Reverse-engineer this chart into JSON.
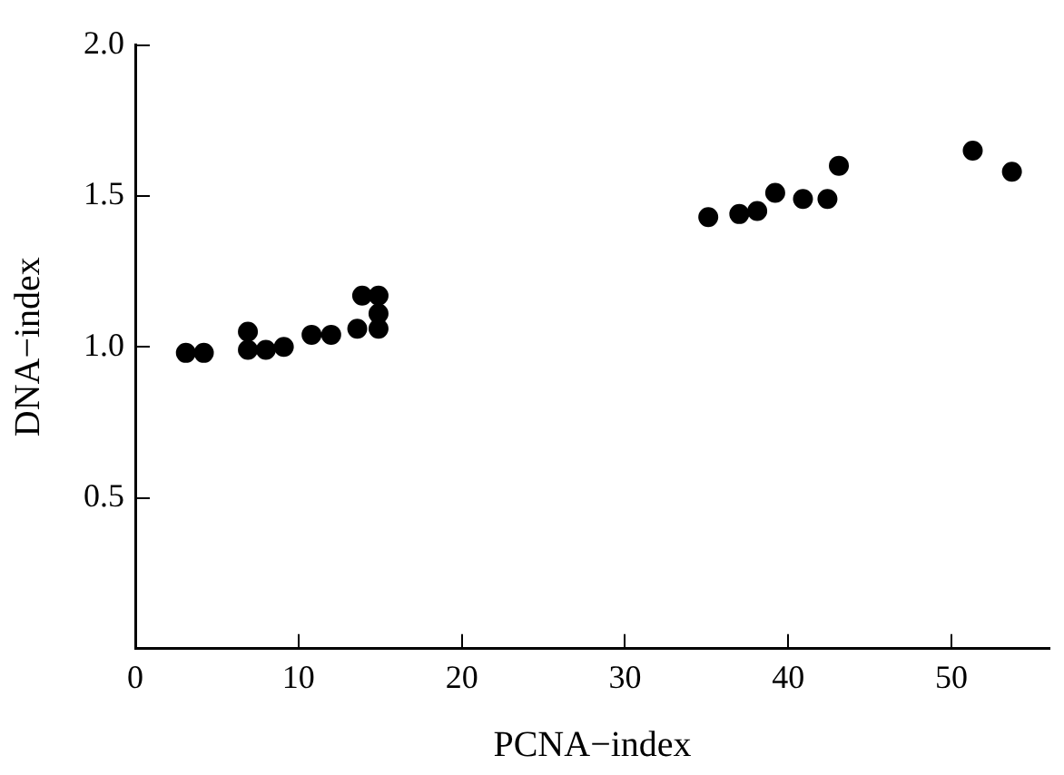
{
  "chart_data": {
    "type": "scatter",
    "xlabel": "PCNA−index",
    "ylabel": "DNA−index",
    "x": [
      3.1,
      4.2,
      6.9,
      6.9,
      8.0,
      9.1,
      10.8,
      12.0,
      13.6,
      13.9,
      14.9,
      14.9,
      14.9,
      35.1,
      37.0,
      38.1,
      39.2,
      40.9,
      42.4,
      43.1,
      51.3,
      53.7
    ],
    "series": [
      {
        "color": "#000000",
        "values": [
          0.98,
          0.98,
          1.05,
          0.99,
          0.99,
          1.0,
          1.04,
          1.04,
          1.06,
          1.17,
          1.17,
          1.11,
          1.06,
          1.43,
          1.44,
          1.45,
          1.51,
          1.49,
          1.49,
          1.6,
          1.65,
          1.58
        ]
      }
    ],
    "xlim": [
      0,
      56
    ],
    "xticks": [
      0,
      10,
      20,
      30,
      40,
      50
    ],
    "ylim": [
      0,
      2
    ],
    "yticks": [
      {
        "value": 0,
        "label": null
      },
      0.5,
      {
        "value": 1,
        "label": "1.0"
      },
      1.5,
      {
        "value": 2,
        "label": "2.0"
      }
    ],
    "grid": false,
    "legend": false,
    "marker": "circle"
  }
}
